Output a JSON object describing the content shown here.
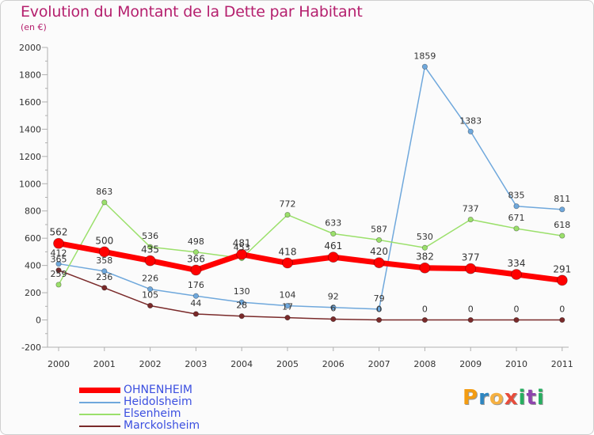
{
  "header": {
    "title": "Evolution du Montant de la Dette par Habitant",
    "subtitle": "(en €)"
  },
  "logo": {
    "text": "Proxiti",
    "letters": [
      {
        "ch": "P",
        "color": "#f39c12"
      },
      {
        "ch": "r",
        "color": "#2e86c1"
      },
      {
        "ch": "o",
        "color": "#f5b041"
      },
      {
        "ch": "x",
        "color": "#e74c3c"
      },
      {
        "ch": "i",
        "color": "#27ae60"
      },
      {
        "ch": "t",
        "color": "#8e44ad"
      },
      {
        "ch": "i",
        "color": "#27ae60"
      }
    ]
  },
  "chart_data": {
    "type": "line",
    "title": "Evolution du Montant de la Dette par Habitant",
    "subtitle": "(en €)",
    "x": [
      "2000",
      "2001",
      "2002",
      "2003",
      "2004",
      "2005",
      "2006",
      "2007",
      "2008",
      "2009",
      "2010",
      "2011"
    ],
    "ylim": [
      -200,
      2000
    ],
    "yticks": [
      -200,
      0,
      200,
      400,
      600,
      800,
      1000,
      1200,
      1400,
      1600,
      1800,
      2000
    ],
    "grid": false,
    "legend_position": "bottom-left",
    "series": [
      {
        "name": "OHNENHEIM",
        "color": "#ff0000",
        "values": [
          562,
          500,
          435,
          366,
          481,
          418,
          461,
          420,
          382,
          377,
          334,
          291
        ],
        "labels": [
          "562",
          "500",
          "435",
          "366",
          "481",
          "418",
          "461",
          "420",
          "382",
          "377",
          "334",
          "291"
        ]
      },
      {
        "name": "Heidolsheim",
        "color": "#6fa8dc",
        "values": [
          412,
          358,
          226,
          176,
          130,
          104,
          92,
          79,
          1859,
          1383,
          835,
          811
        ],
        "labels": [
          "412",
          "358",
          "226",
          "176",
          "130",
          "104",
          "92",
          "79",
          "1859",
          "1383",
          "835",
          "811"
        ]
      },
      {
        "name": "Elsenheim",
        "color": "#9be06b",
        "values": [
          259,
          863,
          536,
          498,
          453,
          772,
          633,
          587,
          530,
          737,
          671,
          618
        ],
        "labels": [
          "259",
          "863",
          "536",
          "498",
          "453",
          "772",
          "633",
          "587",
          "530",
          "737",
          "671",
          "618"
        ]
      },
      {
        "name": "Marckolsheim",
        "color": "#7a2a2a",
        "values": [
          365,
          236,
          105,
          44,
          28,
          17,
          6,
          0,
          0,
          0,
          0,
          0
        ],
        "labels": [
          "365",
          "236",
          "105",
          "44",
          "28",
          "17",
          "6",
          "0",
          "0",
          "0",
          "0",
          "0"
        ]
      }
    ]
  }
}
